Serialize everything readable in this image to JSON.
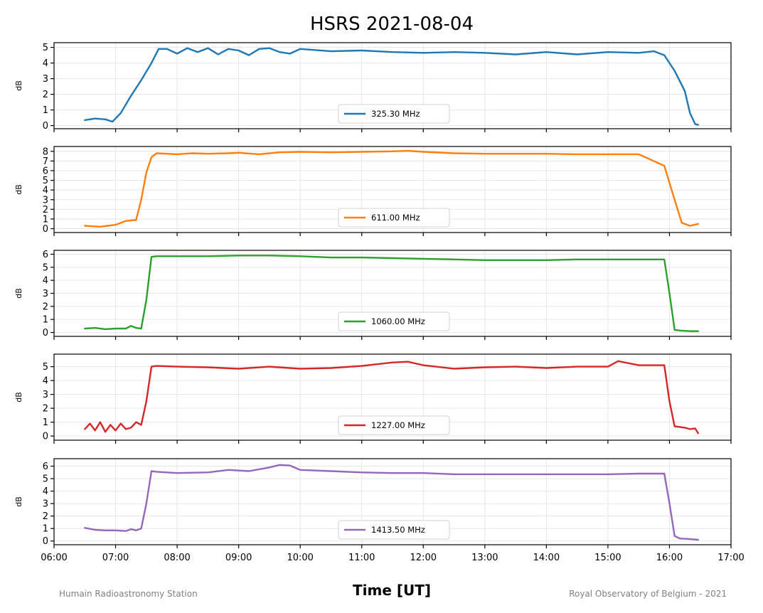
{
  "chart_data": {
    "title": "HSRS 2021-08-04",
    "xlabel": "Time [UT]",
    "ylabel": "dB",
    "footer_left": "Humain Radioastronomy Station",
    "footer_right": "Royal Observatory of Belgium - 2021",
    "xlim": [
      "06:00",
      "17:00"
    ],
    "xticks": [
      "06:00",
      "07:00",
      "08:00",
      "09:00",
      "10:00",
      "11:00",
      "12:00",
      "13:00",
      "14:00",
      "15:00",
      "16:00",
      "17:00"
    ],
    "grid": true,
    "legend_position": "lower center",
    "panels": [
      {
        "type": "line",
        "series": [
          {
            "name": "325.30 MHz",
            "color": "#1f77b4",
            "x": [
              "06:30",
              "06:40",
              "06:50",
              "06:57",
              "07:05",
              "07:15",
              "07:25",
              "07:35",
              "07:42",
              "07:50",
              "08:00",
              "08:10",
              "08:20",
              "08:30",
              "08:40",
              "08:50",
              "09:00",
              "09:10",
              "09:20",
              "09:30",
              "09:40",
              "09:50",
              "10:00",
              "10:30",
              "11:00",
              "11:30",
              "12:00",
              "12:30",
              "13:00",
              "13:30",
              "14:00",
              "14:30",
              "15:00",
              "15:30",
              "15:45",
              "15:55",
              "16:05",
              "16:15",
              "16:20",
              "16:25",
              "16:28"
            ],
            "values": [
              0.35,
              0.45,
              0.4,
              0.25,
              0.8,
              1.9,
              2.9,
              4.0,
              4.9,
              4.9,
              4.6,
              4.95,
              4.7,
              4.95,
              4.55,
              4.9,
              4.8,
              4.5,
              4.9,
              4.95,
              4.7,
              4.6,
              4.9,
              4.75,
              4.8,
              4.7,
              4.65,
              4.7,
              4.65,
              4.55,
              4.7,
              4.55,
              4.7,
              4.65,
              4.75,
              4.5,
              3.5,
              2.2,
              0.8,
              0.1,
              0.05
            ]
          }
        ],
        "ylim": [
          -0.2,
          5.3
        ],
        "yticks": [
          0,
          1,
          2,
          3,
          4,
          5
        ]
      },
      {
        "type": "line",
        "series": [
          {
            "name": "611.00 MHz",
            "color": "#ff7f0e",
            "x": [
              "06:30",
              "06:45",
              "07:00",
              "07:10",
              "07:20",
              "07:25",
              "07:30",
              "07:35",
              "07:40",
              "08:00",
              "08:15",
              "08:30",
              "08:50",
              "09:00",
              "09:20",
              "09:40",
              "10:00",
              "10:30",
              "11:00",
              "11:30",
              "11:45",
              "12:00",
              "12:30",
              "13:00",
              "13:30",
              "14:00",
              "14:30",
              "15:00",
              "15:30",
              "15:55",
              "16:05",
              "16:12",
              "16:20",
              "16:28"
            ],
            "values": [
              0.3,
              0.2,
              0.4,
              0.8,
              0.9,
              3.0,
              5.8,
              7.4,
              7.8,
              7.7,
              7.8,
              7.75,
              7.8,
              7.85,
              7.7,
              7.9,
              7.95,
              7.9,
              7.95,
              8.0,
              8.05,
              7.95,
              7.8,
              7.75,
              7.75,
              7.75,
              7.7,
              7.7,
              7.7,
              6.5,
              3.0,
              0.6,
              0.3,
              0.5
            ]
          }
        ],
        "ylim": [
          -0.4,
          8.5
        ],
        "yticks": [
          0,
          1,
          2,
          3,
          4,
          5,
          6,
          7,
          8
        ]
      },
      {
        "type": "line",
        "series": [
          {
            "name": "1060.00 MHz",
            "color": "#2ca02c",
            "x": [
              "06:30",
              "06:40",
              "06:50",
              "07:00",
              "07:10",
              "07:15",
              "07:20",
              "07:25",
              "07:30",
              "07:35",
              "07:40",
              "08:00",
              "08:30",
              "09:00",
              "09:30",
              "10:00",
              "10:30",
              "11:00",
              "11:30",
              "12:00",
              "12:30",
              "13:00",
              "13:30",
              "14:00",
              "14:30",
              "15:00",
              "15:30",
              "15:55",
              "16:00",
              "16:05",
              "16:10",
              "16:20",
              "16:28"
            ],
            "values": [
              0.3,
              0.35,
              0.25,
              0.3,
              0.3,
              0.5,
              0.35,
              0.3,
              2.5,
              5.8,
              5.85,
              5.85,
              5.85,
              5.9,
              5.9,
              5.85,
              5.75,
              5.75,
              5.7,
              5.65,
              5.6,
              5.55,
              5.55,
              5.55,
              5.6,
              5.6,
              5.6,
              5.6,
              3.0,
              0.2,
              0.15,
              0.1,
              0.1
            ]
          }
        ],
        "ylim": [
          -0.3,
          6.3
        ],
        "yticks": [
          0,
          1,
          2,
          3,
          4,
          5,
          6
        ]
      },
      {
        "type": "line",
        "series": [
          {
            "name": "1227.00 MHz",
            "color": "#d62728",
            "x": [
              "06:30",
              "06:35",
              "06:40",
              "06:45",
              "06:50",
              "06:55",
              "07:00",
              "07:05",
              "07:10",
              "07:15",
              "07:20",
              "07:25",
              "07:30",
              "07:35",
              "07:40",
              "08:00",
              "08:30",
              "09:00",
              "09:30",
              "10:00",
              "10:30",
              "11:00",
              "11:30",
              "11:45",
              "12:00",
              "12:30",
              "13:00",
              "13:30",
              "14:00",
              "14:30",
              "15:00",
              "15:10",
              "15:30",
              "15:55",
              "16:00",
              "16:05",
              "16:15",
              "16:20",
              "16:25",
              "16:28"
            ],
            "values": [
              0.5,
              0.9,
              0.4,
              1.0,
              0.3,
              0.8,
              0.4,
              0.9,
              0.5,
              0.6,
              1.0,
              0.8,
              2.5,
              5.0,
              5.05,
              5.0,
              4.95,
              4.85,
              5.0,
              4.85,
              4.9,
              5.05,
              5.3,
              5.35,
              5.1,
              4.85,
              4.95,
              5.0,
              4.9,
              5.0,
              5.0,
              5.4,
              5.1,
              5.1,
              2.5,
              0.7,
              0.6,
              0.5,
              0.55,
              0.2
            ]
          }
        ],
        "ylim": [
          -0.3,
          5.9
        ],
        "yticks": [
          0,
          1,
          2,
          3,
          4,
          5
        ]
      },
      {
        "type": "line",
        "series": [
          {
            "name": "1413.50 MHz",
            "color": "#9467bd",
            "x": [
              "06:30",
              "06:40",
              "06:50",
              "07:00",
              "07:10",
              "07:15",
              "07:20",
              "07:25",
              "07:30",
              "07:35",
              "07:40",
              "08:00",
              "08:30",
              "08:50",
              "09:10",
              "09:30",
              "09:40",
              "09:50",
              "10:00",
              "10:30",
              "11:00",
              "11:30",
              "12:00",
              "12:30",
              "13:00",
              "13:30",
              "14:00",
              "14:30",
              "15:00",
              "15:30",
              "15:55",
              "16:00",
              "16:05",
              "16:10",
              "16:20",
              "16:28"
            ],
            "values": [
              1.05,
              0.9,
              0.85,
              0.85,
              0.8,
              0.95,
              0.85,
              1.0,
              3.0,
              5.6,
              5.55,
              5.45,
              5.5,
              5.7,
              5.6,
              5.9,
              6.1,
              6.05,
              5.7,
              5.6,
              5.5,
              5.45,
              5.45,
              5.35,
              5.35,
              5.35,
              5.35,
              5.35,
              5.35,
              5.4,
              5.4,
              3.0,
              0.4,
              0.2,
              0.15,
              0.1
            ]
          }
        ],
        "ylim": [
          -0.3,
          6.6
        ],
        "yticks": [
          0,
          1,
          2,
          3,
          4,
          5,
          6
        ]
      }
    ]
  }
}
